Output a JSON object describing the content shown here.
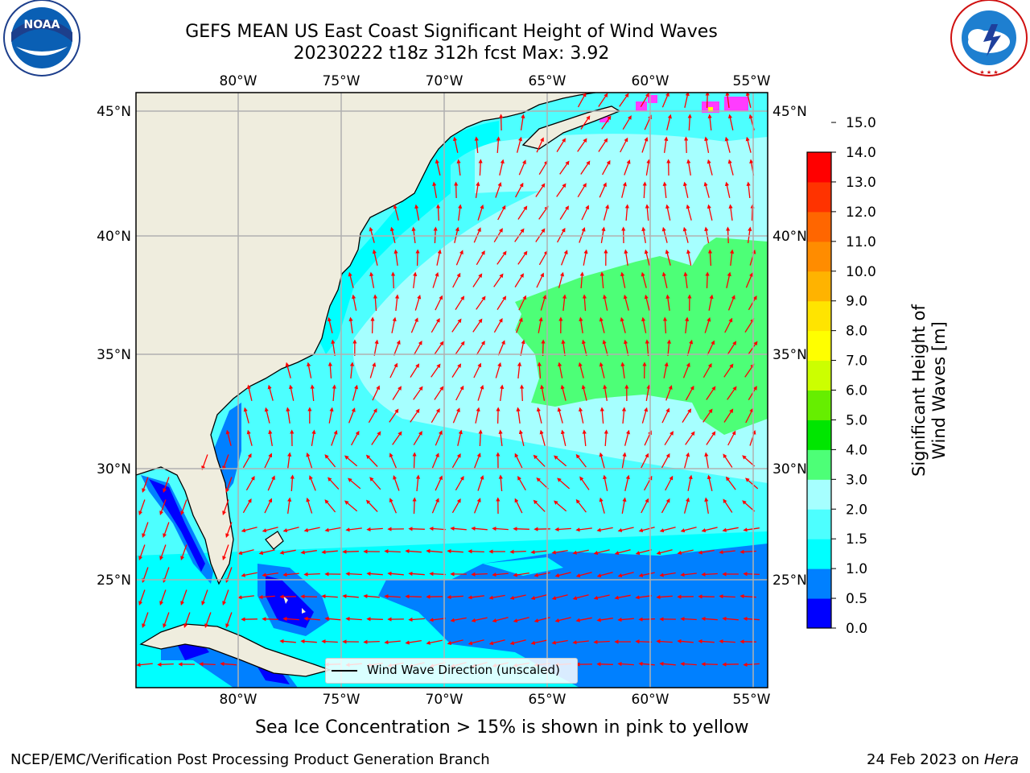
{
  "title": {
    "line1": "GEFS MEAN US East Coast Significant Height of Wind Waves",
    "line2": "20230222 t18z 312h fcst   Max: 3.92"
  },
  "map": {
    "lon_labels": [
      "80°W",
      "75°W",
      "70°W",
      "65°W",
      "60°W",
      "55°W"
    ],
    "lat_labels": [
      "45°N",
      "40°N",
      "35°N",
      "30°N",
      "25°N"
    ],
    "gridlines": true,
    "colors": {
      "land": "#efedde",
      "coast": "#000000",
      "grid": "#b0b0b0",
      "arrow": "#ff0000"
    }
  },
  "legend": {
    "label": "Wind Wave Direction (unscaled)"
  },
  "colorbar": {
    "label": "Significant Height of Wind Waves [m]",
    "ticks": [
      "0.0",
      "0.5",
      "1.0",
      "1.5",
      "2.0",
      "3.0",
      "4.0",
      "5.0",
      "6.0",
      "7.0",
      "8.0",
      "9.0",
      "10.0",
      "11.0",
      "12.0",
      "13.0",
      "14.0",
      "15.0"
    ],
    "colors": [
      "#0000ff",
      "#0080ff",
      "#00ffff",
      "#4dffff",
      "#a6ffff",
      "#4dff77",
      "#00e600",
      "#66ee00",
      "#ccff00",
      "#ffff00",
      "#ffe400",
      "#ffb300",
      "#ff8c00",
      "#ff6600",
      "#ff3300",
      "#ff0000"
    ]
  },
  "notes": {
    "ice": "Sea Ice Concentration > 15% is shown in pink to yellow"
  },
  "footer": {
    "left": "NCEP/EMC/Verification Post Processing Product Generation Branch",
    "date": "24 Feb 2023 on",
    "machine": "Hera"
  },
  "logos": {
    "left": "noaa-logo",
    "right": "national-weather-service-logo"
  }
}
